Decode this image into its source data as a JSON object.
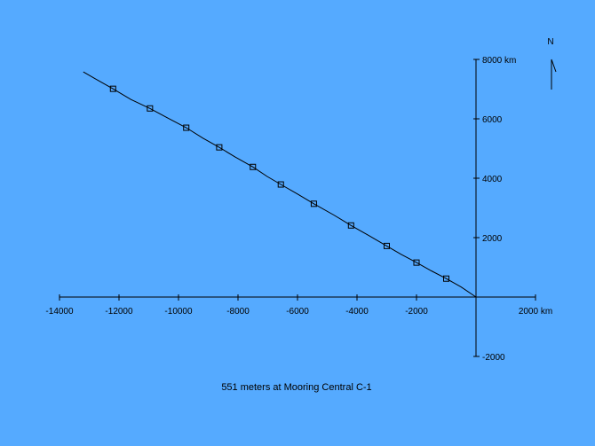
{
  "chart_data": {
    "type": "line",
    "title": "551 meters at Mooring Central C-1",
    "x_unit": "km",
    "y_unit": "km",
    "xlim": [
      -14000,
      2000
    ],
    "ylim": [
      -2000,
      8000
    ],
    "x_ticks": [
      -14000,
      -12000,
      -10000,
      -8000,
      -6000,
      -4000,
      -2000,
      2000
    ],
    "x_tick_labels": [
      "-14000",
      "-12000",
      "-10000",
      "-8000",
      "-6000",
      "-4000",
      "-2000",
      "2000 km"
    ],
    "y_ticks": [
      -2000,
      2000,
      4000,
      6000,
      8000
    ],
    "y_tick_labels": [
      "-2000",
      "2000",
      "4000",
      "6000",
      "8000 km"
    ],
    "north_label": "N",
    "grid": false,
    "series": [
      {
        "x": [
          0,
          -505,
          -1000,
          -1500,
          -2000,
          -2520,
          -3000,
          -3600,
          -4200,
          -4780,
          -5450,
          -6000,
          -6560,
          -7020,
          -7500,
          -8100,
          -8630,
          -9180,
          -9740,
          -10350,
          -10960,
          -11600,
          -12200,
          -12800,
          -13200
        ],
        "y": [
          0,
          340,
          620,
          880,
          1160,
          1440,
          1720,
          2070,
          2410,
          2760,
          3140,
          3470,
          3790,
          4060,
          4380,
          4720,
          5040,
          5350,
          5700,
          6020,
          6350,
          6650,
          7010,
          7350,
          7580
        ]
      }
    ],
    "markers": {
      "x": [
        -1000,
        -2000,
        -3000,
        -4200,
        -5450,
        -6560,
        -7500,
        -8630,
        -9740,
        -10960,
        -12200
      ],
      "y": [
        620,
        1160,
        1720,
        2410,
        3140,
        3790,
        4380,
        5040,
        5700,
        6350,
        7010
      ]
    }
  }
}
